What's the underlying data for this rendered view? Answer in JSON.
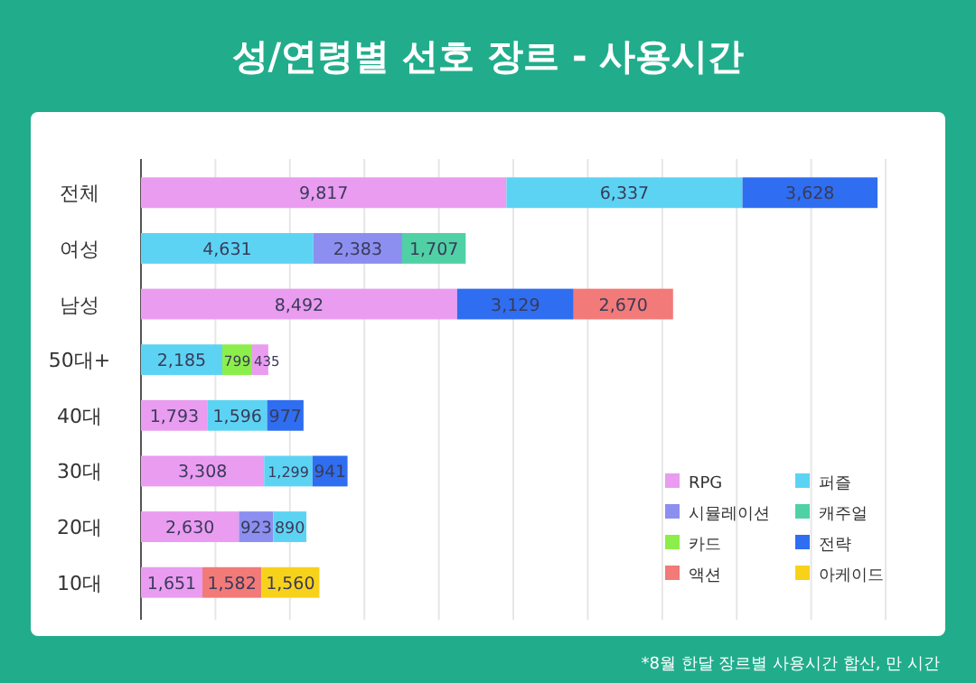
{
  "chart_data": {
    "type": "bar",
    "orientation": "horizontal",
    "stacked": true,
    "title": "성/연령별 선호 장르 - 사용시간",
    "categories": [
      "전체",
      "여성",
      "남성",
      "50대+",
      "40대",
      "30대",
      "20대",
      "10대"
    ],
    "xlim": [
      0,
      20000
    ],
    "xticks": [
      {
        "value": 0,
        "label": null
      },
      {
        "value": 2000,
        "label": null
      },
      {
        "value": 4000,
        "label": null
      },
      {
        "value": 6000,
        "label": null
      },
      {
        "value": 8000,
        "label": null
      },
      {
        "value": 10000,
        "label": null
      },
      {
        "value": 12000,
        "label": null
      },
      {
        "value": 14000,
        "label": null
      },
      {
        "value": 16000,
        "label": null
      },
      {
        "value": 18000,
        "label": null
      },
      {
        "value": 20000,
        "label": null
      }
    ],
    "tick_labels": "y",
    "grid": "x",
    "legend": "bottom right",
    "series": [
      {
        "name": "RPG",
        "color": "#e99cf0",
        "values": [
          9817,
          null,
          8492,
          null,
          1793,
          3308,
          2630,
          1651
        ],
        "value_labels": [
          "9,817",
          null,
          "8,492",
          null,
          "1,793",
          "3,308",
          "2,630",
          "1,651"
        ]
      },
      {
        "name": "퍼즐",
        "color": "#5dd3f3",
        "values": [
          6337,
          4631,
          null,
          2185,
          1596,
          1299,
          null,
          null
        ],
        "value_labels": [
          "6,337",
          "4,631",
          null,
          "2,185",
          "1,596",
          "1,299",
          null,
          null
        ]
      },
      {
        "name": "시뮬레이션",
        "color": "#8c8ff0",
        "values": [
          null,
          2383,
          null,
          null,
          null,
          null,
          923,
          null
        ],
        "value_labels": [
          null,
          "2,383",
          null,
          null,
          null,
          null,
          "923",
          null
        ]
      },
      {
        "color": "#5dd3f3",
        "values": [
          null,
          null,
          null,
          null,
          null,
          null,
          890,
          null
        ],
        "value_labels": [
          null,
          null,
          null,
          null,
          null,
          null,
          "890",
          null
        ]
      },
      {
        "name": "캐주얼",
        "color": "#4fd1a5",
        "values": [
          null,
          1707,
          null,
          null,
          null,
          null,
          null,
          null
        ],
        "value_labels": [
          null,
          "1,707",
          null,
          null,
          null,
          null,
          null,
          null
        ]
      },
      {
        "name": "카드",
        "color": "#8cee4a",
        "values": [
          null,
          null,
          null,
          799,
          null,
          null,
          null,
          null
        ],
        "value_labels": [
          null,
          null,
          null,
          "799",
          null,
          null,
          null,
          null
        ]
      },
      {
        "color": "#e99cf0",
        "values": [
          null,
          null,
          null,
          435,
          null,
          null,
          null,
          null
        ],
        "value_labels": [
          null,
          null,
          null,
          "435",
          null,
          null,
          null,
          null
        ]
      },
      {
        "name": "전략",
        "color": "#2f6ef0",
        "values": [
          3628,
          null,
          3129,
          null,
          977,
          941,
          null,
          null
        ],
        "value_labels": [
          "3,628",
          null,
          "3,129",
          null,
          "977",
          "941",
          null,
          null
        ]
      },
      {
        "name": "액션",
        "color": "#f27a78",
        "values": [
          null,
          null,
          2670,
          null,
          null,
          null,
          null,
          1582
        ],
        "value_labels": [
          null,
          null,
          "2,670",
          null,
          null,
          null,
          null,
          "1,582"
        ]
      },
      {
        "name": "아케이드",
        "color": "#f8d21a",
        "values": [
          null,
          null,
          null,
          null,
          null,
          null,
          null,
          1560
        ],
        "value_labels": [
          null,
          null,
          null,
          null,
          null,
          null,
          null,
          "1,560"
        ]
      }
    ],
    "annotations": [
      "*8월 한달 장르별 사용시간 합산, 만 시간"
    ]
  }
}
